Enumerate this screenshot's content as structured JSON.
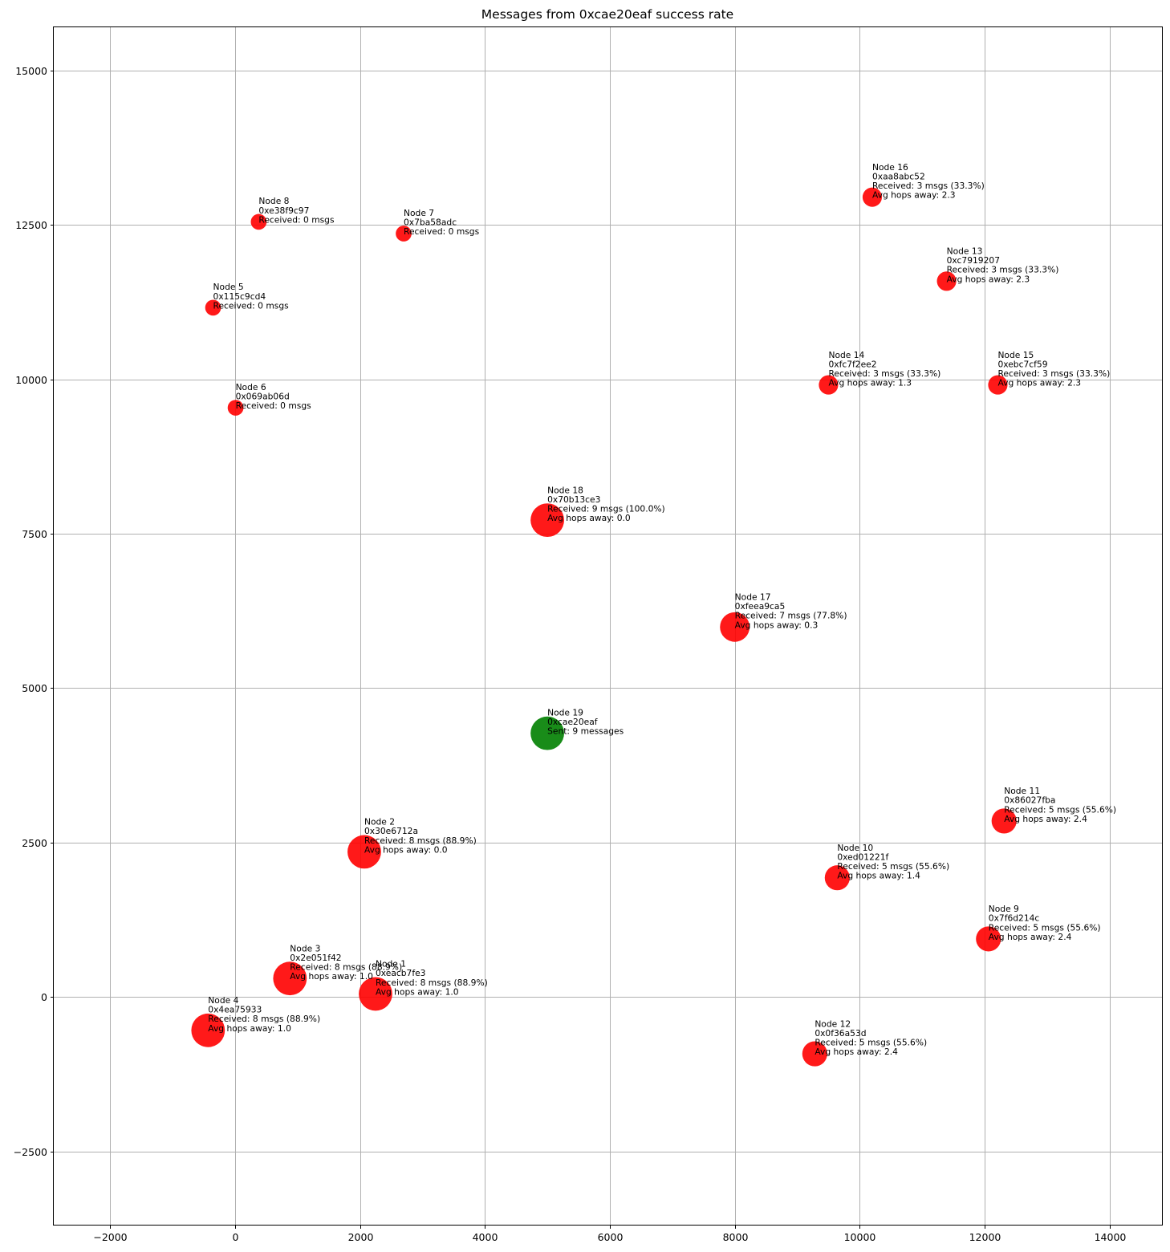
{
  "chart_data": {
    "type": "scatter",
    "title": "Messages from 0xcae20eaf success rate",
    "xlabel": "",
    "ylabel": "",
    "xlim": [
      -2900,
      14850
    ],
    "ylim": [
      -3700,
      15700
    ],
    "xticks": [
      -2000,
      0,
      2000,
      4000,
      6000,
      8000,
      10000,
      12000,
      14000
    ],
    "xtick_labels": [
      "−2000",
      "0",
      "2000",
      "4000",
      "6000",
      "8000",
      "10000",
      "12000",
      "14000"
    ],
    "yticks": [
      -2500,
      0,
      2500,
      5000,
      7500,
      10000,
      12500,
      15000
    ],
    "ytick_labels": [
      "−2500",
      "0",
      "2500",
      "5000",
      "7500",
      "10000",
      "12500",
      "15000"
    ],
    "grid": true,
    "colors": {
      "received": "#ff0000",
      "sender": "#008000"
    },
    "points": [
      {
        "x": 2250,
        "y": 50,
        "size": 9,
        "color": "#ff0000",
        "lines": [
          "Node 1",
          "0xeacb7fe3",
          "Received: 8 msgs (88.9%)",
          "Avg hops away: 1.0"
        ]
      },
      {
        "x": 2070,
        "y": 2350,
        "size": 9,
        "color": "#ff0000",
        "lines": [
          "Node 2",
          "0x30e6712a",
          "Received: 8 msgs (88.9%)",
          "Avg hops away: 0.0"
        ]
      },
      {
        "x": 880,
        "y": 300,
        "size": 9,
        "color": "#ff0000",
        "lines": [
          "Node 3",
          "0x2e051f42",
          "Received: 8 msgs (88.9%)",
          "Avg hops away: 1.0"
        ]
      },
      {
        "x": -430,
        "y": -540,
        "size": 9,
        "color": "#ff0000",
        "lines": [
          "Node 4",
          "0x4ea75933",
          "Received: 8 msgs (88.9%)",
          "Avg hops away: 1.0"
        ]
      },
      {
        "x": -350,
        "y": 11160,
        "size": 2,
        "color": "#ff0000",
        "lines": [
          "Node 5",
          "0x115c9cd4",
          "Received: 0 msgs"
        ]
      },
      {
        "x": 10,
        "y": 9540,
        "size": 2,
        "color": "#ff0000",
        "lines": [
          "Node 6",
          "0x069ab06d",
          "Received: 0 msgs"
        ]
      },
      {
        "x": 2700,
        "y": 12360,
        "size": 2,
        "color": "#ff0000",
        "lines": [
          "Node 7",
          "0x7ba58adc",
          "Received: 0 msgs"
        ]
      },
      {
        "x": 380,
        "y": 12550,
        "size": 2,
        "color": "#ff0000",
        "lines": [
          "Node 8",
          "0xe38f9c97",
          "Received: 0 msgs"
        ]
      },
      {
        "x": 12060,
        "y": 940,
        "size": 5,
        "color": "#ff0000",
        "lines": [
          "Node 9",
          "0x7f6d214c",
          "Received: 5 msgs (55.6%)",
          "Avg hops away: 2.4"
        ]
      },
      {
        "x": 9640,
        "y": 1930,
        "size": 5,
        "color": "#ff0000",
        "lines": [
          "Node 10",
          "0xed01221f",
          "Received: 5 msgs (55.6%)",
          "Avg hops away: 1.4"
        ]
      },
      {
        "x": 12310,
        "y": 2850,
        "size": 5,
        "color": "#ff0000",
        "lines": [
          "Node 11",
          "0x86027fba",
          "Received: 5 msgs (55.6%)",
          "Avg hops away: 2.4"
        ]
      },
      {
        "x": 9280,
        "y": -920,
        "size": 5,
        "color": "#ff0000",
        "lines": [
          "Node 12",
          "0x0f36a53d",
          "Received: 5 msgs (55.6%)",
          "Avg hops away: 2.4"
        ]
      },
      {
        "x": 11390,
        "y": 11590,
        "size": 3,
        "color": "#ff0000",
        "lines": [
          "Node 13",
          "0xc7919207",
          "Received: 3 msgs (33.3%)",
          "Avg hops away: 2.3"
        ]
      },
      {
        "x": 9500,
        "y": 9910,
        "size": 3,
        "color": "#ff0000",
        "lines": [
          "Node 14",
          "0xfc7f2ee2",
          "Received: 3 msgs (33.3%)",
          "Avg hops away: 1.3"
        ]
      },
      {
        "x": 12210,
        "y": 9910,
        "size": 3,
        "color": "#ff0000",
        "lines": [
          "Node 15",
          "0xebc7cf59",
          "Received: 3 msgs (33.3%)",
          "Avg hops away: 2.3"
        ]
      },
      {
        "x": 10200,
        "y": 12950,
        "size": 3,
        "color": "#ff0000",
        "lines": [
          "Node 16",
          "0xaa8abc52",
          "Received: 3 msgs (33.3%)",
          "Avg hops away: 2.3"
        ]
      },
      {
        "x": 8000,
        "y": 5990,
        "size": 7,
        "color": "#ff0000",
        "lines": [
          "Node 17",
          "0xfeea9ca5",
          "Received: 7 msgs (77.8%)",
          "Avg hops away: 0.3"
        ]
      },
      {
        "x": 5000,
        "y": 7720,
        "size": 9,
        "color": "#ff0000",
        "lines": [
          "Node 18",
          "0x70b13ce3",
          "Received: 9 msgs (100.0%)",
          "Avg hops away: 0.0"
        ]
      },
      {
        "x": 5000,
        "y": 4270,
        "size": 9,
        "color": "#008000",
        "lines": [
          "Node 19",
          "0xcae20eaf",
          "Sent: 9 messages"
        ]
      }
    ]
  }
}
